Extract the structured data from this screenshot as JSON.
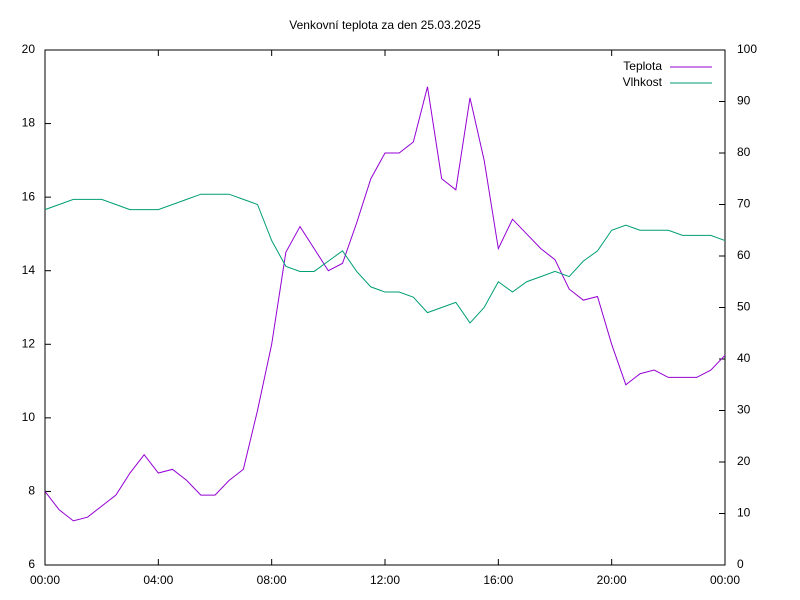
{
  "chart_data": {
    "type": "line",
    "title": "Venkovní teplota za den 25.03.2025",
    "x": [
      0,
      0.5,
      1,
      1.5,
      2,
      2.5,
      3,
      3.5,
      4,
      4.5,
      5,
      5.5,
      6,
      6.5,
      7,
      7.5,
      8,
      8.5,
      9,
      9.5,
      10,
      10.5,
      11,
      11.5,
      12,
      12.5,
      13,
      13.5,
      14,
      14.5,
      15,
      15.5,
      16,
      16.5,
      17,
      17.5,
      18,
      18.5,
      19,
      19.5,
      20,
      20.5,
      21,
      21.5,
      22,
      22.5,
      23,
      23.5,
      24
    ],
    "series": [
      {
        "name": "Teplota",
        "color": "#9400d3",
        "axis": "y",
        "values": [
          8.0,
          7.5,
          7.2,
          7.3,
          7.6,
          7.9,
          8.5,
          9.0,
          8.5,
          8.6,
          8.3,
          7.9,
          7.9,
          8.3,
          8.6,
          10.2,
          12.0,
          14.5,
          15.2,
          14.6,
          14.0,
          14.2,
          15.3,
          16.5,
          17.2,
          17.2,
          17.5,
          19.0,
          16.5,
          16.2,
          18.7,
          17.0,
          14.6,
          15.4,
          15.0,
          14.6,
          14.3,
          13.5,
          13.2,
          13.3,
          12.0,
          10.9,
          11.2,
          11.3,
          11.1,
          11.1,
          11.1,
          11.3,
          11.7
        ]
      },
      {
        "name": "Vlhkost",
        "color": "#009e73",
        "axis": "y2",
        "values": [
          69,
          70,
          71,
          71,
          71,
          70,
          69,
          69,
          69,
          70,
          71,
          72,
          72,
          72,
          71,
          70,
          63,
          58,
          57,
          57,
          59,
          61,
          57,
          54,
          53,
          53,
          52,
          49,
          50,
          51,
          47,
          50,
          55,
          53,
          55,
          56,
          57,
          56,
          59,
          61,
          65,
          66,
          65,
          65,
          65,
          64,
          64,
          64,
          63
        ]
      }
    ],
    "xlim": [
      0,
      24
    ],
    "xticks": [
      {
        "value": 0,
        "label": "00:00"
      },
      {
        "value": 4,
        "label": "04:00"
      },
      {
        "value": 8,
        "label": "08:00"
      },
      {
        "value": 12,
        "label": "12:00"
      },
      {
        "value": 16,
        "label": "16:00"
      },
      {
        "value": 20,
        "label": "20:00"
      },
      {
        "value": 24,
        "label": "00:00"
      }
    ],
    "ylim": [
      6,
      20
    ],
    "yticks": [
      6,
      8,
      10,
      12,
      14,
      16,
      18,
      20
    ],
    "y2lim": [
      0,
      100
    ],
    "y2ticks": [
      0,
      10,
      20,
      30,
      40,
      50,
      60,
      70,
      80,
      90,
      100
    ],
    "legend": "top-right"
  }
}
